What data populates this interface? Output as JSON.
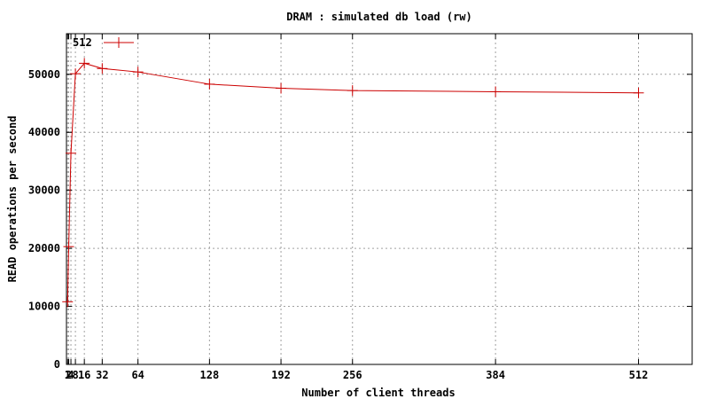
{
  "chart_data": {
    "type": "line",
    "title": "DRAM : simulated db load (rw)",
    "xlabel": "Number of client threads",
    "ylabel": "READ operations per second",
    "xlim": [
      0,
      560
    ],
    "ylim": [
      0,
      57000
    ],
    "xticks": [
      1,
      2,
      4,
      8,
      16,
      32,
      64,
      128,
      192,
      256,
      384,
      512
    ],
    "xtick_labels": [
      "1",
      "2",
      "4",
      "8",
      "16",
      "32",
      "64",
      "128",
      "192",
      "256",
      "384",
      "512"
    ],
    "yticks": [
      0,
      10000,
      20000,
      30000,
      40000,
      50000
    ],
    "ytick_labels": [
      "0",
      "10000",
      "20000",
      "30000",
      "40000",
      "50000"
    ],
    "grid": true,
    "legend_position": "top-left",
    "series": [
      {
        "name": "512",
        "color": "#cc0000",
        "marker": "plus",
        "x": [
          1,
          2,
          4,
          8,
          16,
          32,
          64,
          128,
          192,
          256,
          384,
          512
        ],
        "y": [
          10800,
          20300,
          36400,
          50100,
          51900,
          51000,
          50400,
          48300,
          47600,
          47200,
          47000,
          46800
        ]
      }
    ]
  }
}
